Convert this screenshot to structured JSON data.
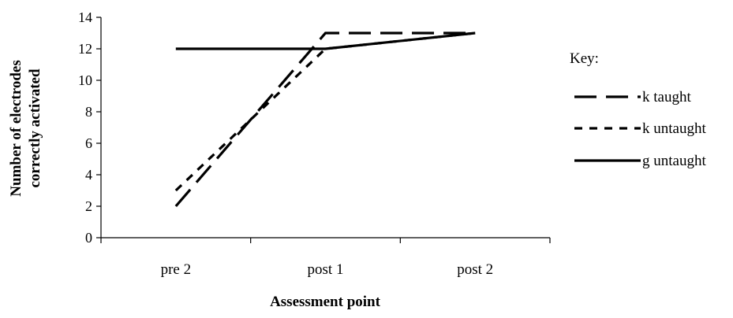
{
  "chart_data": {
    "type": "line",
    "categories": [
      "pre 2",
      "post 1",
      "post 2"
    ],
    "series": [
      {
        "name": "k taught",
        "values": [
          2,
          13,
          13
        ],
        "dash": "28 12"
      },
      {
        "name": "k untaught",
        "values": [
          3,
          12,
          13
        ],
        "dash": "10 9"
      },
      {
        "name": "g untaught",
        "values": [
          12,
          12,
          13
        ],
        "dash": ""
      }
    ],
    "title": "",
    "xlabel": "Assessment point",
    "ylabel": [
      "Number of electrodes",
      "correctly activated"
    ],
    "ylim": [
      0,
      14
    ],
    "yticks": [
      "0",
      "2",
      "4",
      "6",
      "8",
      "10",
      "12",
      "14"
    ],
    "grid": false,
    "legend": {
      "title": "Key:",
      "position": "right"
    },
    "line_color": "#000000"
  }
}
